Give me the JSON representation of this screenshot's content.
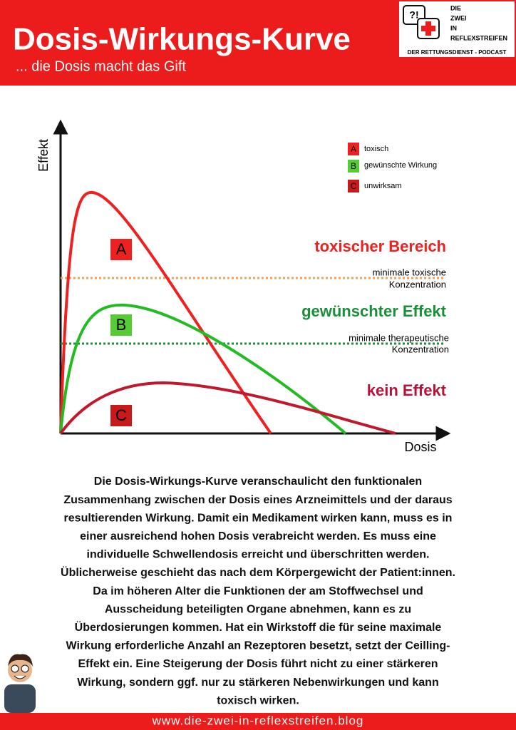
{
  "header": {
    "title": "Dosis-Wirkungs-Kurve",
    "subtitle": "... die Dosis macht das Gift",
    "logo": {
      "icon_text": "?!",
      "lines": [
        "DIE",
        "ZWEI",
        "IN",
        "REFLEXSTREIFEN"
      ],
      "tagline": "DER RETTUNGSDIENST - PODCAST"
    }
  },
  "diagram": {
    "y_axis_label": "Effekt",
    "x_axis_label": "Dosis",
    "legend": [
      {
        "key": "A",
        "label": "toxisch"
      },
      {
        "key": "B",
        "label": "gewünschte Wirkung"
      },
      {
        "key": "C",
        "label": "unwirksam"
      }
    ],
    "curve_labels": [
      "A",
      "B",
      "C"
    ],
    "zones": [
      "toxischer Bereich",
      "gewünschter Effekt",
      "kein Effekt"
    ],
    "thresholds": [
      [
        "minimale toxische",
        "Konzentration"
      ],
      [
        "minimale therapeutische",
        "Konzentration"
      ]
    ]
  },
  "body": {
    "lines": [
      "Die Dosis-Wirkungs-Kurve veranschaulicht den funktionalen",
      "Zusammenhang zwischen der Dosis eines Arzneimittels und der daraus",
      "resultierenden Wirkung. Damit ein Medikament wirken kann, muss es in",
      "einer ausreichend hohen Dosis verabreicht werden. Es muss eine",
      "individuelle Schwellendosis erreicht und überschritten werden.",
      "Üblicherweise geschieht das nach dem Körpergewicht der Patient:innen.",
      "Da im höheren Alter die Funktionen der am Stoffwechsel und",
      "Ausscheidung beteiligten Organe abnehmen, kann es zu",
      "Überdosierungen kommen. Hat ein Wirkstoff die für seine maximale",
      "Wirkung erforderliche Anzahl an Rezeptoren besetzt, setzt der Ceilling-",
      "Effekt ein. Eine Steigerung der Dosis führt nicht zu einer stärkeren",
      "Wirkung, sondern ggf. nur zu stärkeren Nebenwirkungen und kann",
      "toxisch wirken."
    ]
  },
  "footer": {
    "url": "www.die-zwei-in-reflexstreifen.blog"
  }
}
